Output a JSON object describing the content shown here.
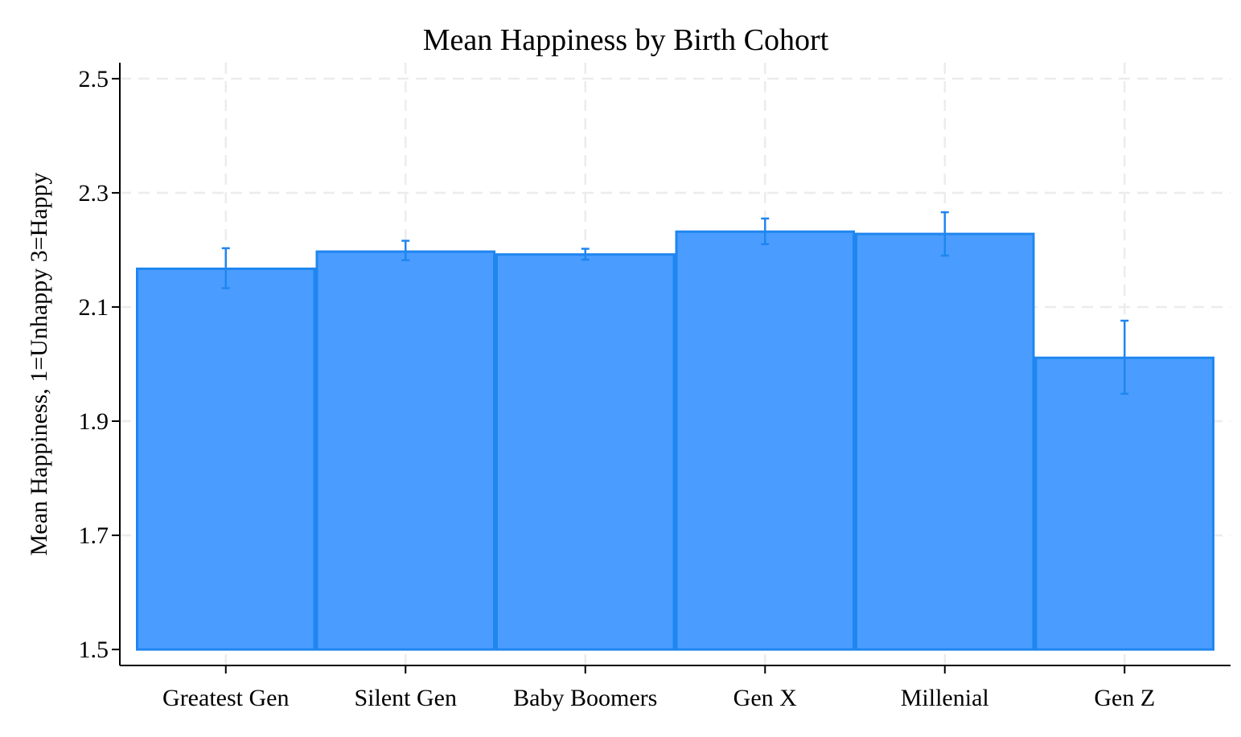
{
  "chart_data": {
    "type": "bar",
    "title": "Mean Happiness by Birth Cohort",
    "xlabel": "",
    "ylabel": "Mean Happiness, 1=Unhappy 3=Happy",
    "categories": [
      "Greatest Gen",
      "Silent Gen",
      "Baby Boomers",
      "Gen X",
      "Millenial",
      "Gen Z"
    ],
    "values": [
      2.167,
      2.197,
      2.192,
      2.232,
      2.228,
      2.011
    ],
    "error_low": [
      2.133,
      2.182,
      2.183,
      2.21,
      2.19,
      1.948
    ],
    "error_high": [
      2.203,
      2.216,
      2.202,
      2.255,
      2.266,
      2.076
    ],
    "yticks": [
      1.5,
      1.7,
      1.9,
      2.1,
      2.3,
      2.5
    ],
    "ytick_labels": [
      "1.5",
      "1.7",
      "1.9",
      "2.1",
      "2.3",
      "2.5"
    ],
    "ylim": [
      1.472,
      2.528
    ],
    "bar_base": 1.5,
    "grid": true,
    "colors": {
      "bar_fill": "#4a9dff",
      "bar_edge": "#1f86f0",
      "error_bar": "#1f86f0"
    }
  }
}
